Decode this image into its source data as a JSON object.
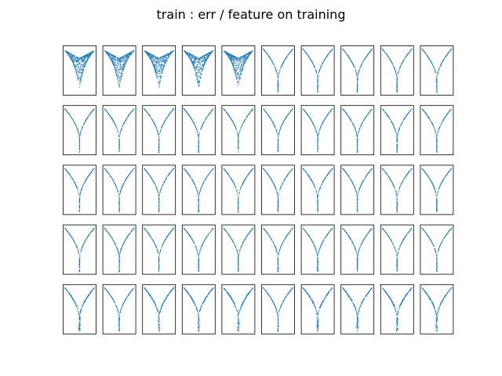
{
  "chart_data": {
    "type": "scatter",
    "title": "train : err / feature on training",
    "grid": {
      "rows": 5,
      "cols": 10
    },
    "point_color": "#1f77b4",
    "axes_visible": false,
    "panels": [
      {
        "row": 0,
        "col": 0,
        "shape": "dense-fan"
      },
      {
        "row": 0,
        "col": 1,
        "shape": "dense-fan"
      },
      {
        "row": 0,
        "col": 2,
        "shape": "dense-fan"
      },
      {
        "row": 0,
        "col": 3,
        "shape": "dense-fan"
      },
      {
        "row": 0,
        "col": 4,
        "shape": "dense-fan"
      },
      {
        "row": 0,
        "col": 5,
        "shape": "v-curve"
      },
      {
        "row": 0,
        "col": 6,
        "shape": "v-curve"
      },
      {
        "row": 0,
        "col": 7,
        "shape": "v-curve"
      },
      {
        "row": 0,
        "col": 8,
        "shape": "v-curve"
      },
      {
        "row": 0,
        "col": 9,
        "shape": "v-curve"
      },
      {
        "row": 1,
        "col": 0,
        "shape": "v-curve"
      },
      {
        "row": 1,
        "col": 1,
        "shape": "v-curve"
      },
      {
        "row": 1,
        "col": 2,
        "shape": "v-curve"
      },
      {
        "row": 1,
        "col": 3,
        "shape": "v-curve"
      },
      {
        "row": 1,
        "col": 4,
        "shape": "v-curve"
      },
      {
        "row": 1,
        "col": 5,
        "shape": "v-curve"
      },
      {
        "row": 1,
        "col": 6,
        "shape": "v-curve"
      },
      {
        "row": 1,
        "col": 7,
        "shape": "v-curve"
      },
      {
        "row": 1,
        "col": 8,
        "shape": "v-curve"
      },
      {
        "row": 1,
        "col": 9,
        "shape": "v-curve"
      },
      {
        "row": 2,
        "col": 0,
        "shape": "v-curve"
      },
      {
        "row": 2,
        "col": 1,
        "shape": "v-curve"
      },
      {
        "row": 2,
        "col": 2,
        "shape": "v-curve"
      },
      {
        "row": 2,
        "col": 3,
        "shape": "v-curve"
      },
      {
        "row": 2,
        "col": 4,
        "shape": "v-curve"
      },
      {
        "row": 2,
        "col": 5,
        "shape": "v-curve"
      },
      {
        "row": 2,
        "col": 6,
        "shape": "v-curve"
      },
      {
        "row": 2,
        "col": 7,
        "shape": "v-curve"
      },
      {
        "row": 2,
        "col": 8,
        "shape": "v-curve"
      },
      {
        "row": 2,
        "col": 9,
        "shape": "v-curve"
      },
      {
        "row": 3,
        "col": 0,
        "shape": "v-curve"
      },
      {
        "row": 3,
        "col": 1,
        "shape": "v-curve"
      },
      {
        "row": 3,
        "col": 2,
        "shape": "v-curve"
      },
      {
        "row": 3,
        "col": 3,
        "shape": "v-curve"
      },
      {
        "row": 3,
        "col": 4,
        "shape": "v-curve"
      },
      {
        "row": 3,
        "col": 5,
        "shape": "v-curve"
      },
      {
        "row": 3,
        "col": 6,
        "shape": "v-curve"
      },
      {
        "row": 3,
        "col": 7,
        "shape": "v-curve"
      },
      {
        "row": 3,
        "col": 8,
        "shape": "v-curve"
      },
      {
        "row": 3,
        "col": 9,
        "shape": "v-curve"
      },
      {
        "row": 4,
        "col": 0,
        "shape": "v-curve-scattered"
      },
      {
        "row": 4,
        "col": 1,
        "shape": "v-curve"
      },
      {
        "row": 4,
        "col": 2,
        "shape": "v-curve-scattered"
      },
      {
        "row": 4,
        "col": 3,
        "shape": "v-curve-scattered"
      },
      {
        "row": 4,
        "col": 4,
        "shape": "v-curve-scattered"
      },
      {
        "row": 4,
        "col": 5,
        "shape": "v-curve"
      },
      {
        "row": 4,
        "col": 6,
        "shape": "v-curve-scattered"
      },
      {
        "row": 4,
        "col": 7,
        "shape": "v-curve-scattered"
      },
      {
        "row": 4,
        "col": 8,
        "shape": "v-curve-scattered"
      },
      {
        "row": 4,
        "col": 9,
        "shape": "v-curve-scattered"
      }
    ]
  }
}
